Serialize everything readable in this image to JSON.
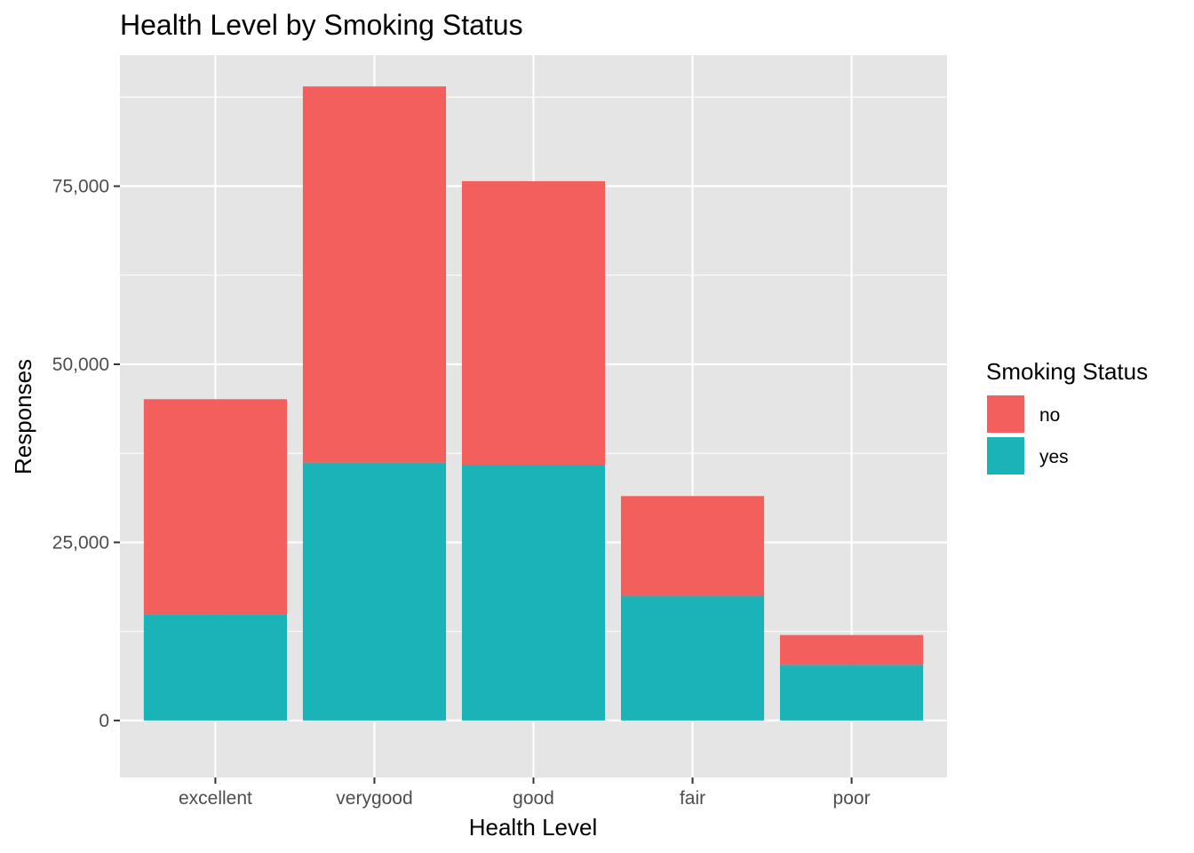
{
  "chart_data": {
    "type": "bar",
    "stacked": true,
    "title": "Health Level by Smoking Status",
    "xlabel": "Health Level",
    "ylabel": "Responses",
    "categories": [
      "excellent",
      "verygood",
      "good",
      "fair",
      "poor"
    ],
    "series": [
      {
        "name": "no",
        "values": [
          30200,
          52800,
          39800,
          14000,
          4200
        ],
        "color": "#F25F5C"
      },
      {
        "name": "yes",
        "values": [
          14900,
          36200,
          35900,
          17500,
          7800
        ],
        "color": "#1AB3B7"
      }
    ],
    "ylim": [
      -8000,
      93400
    ],
    "yticks": [
      0,
      25000,
      50000,
      75000
    ],
    "ytick_labels": [
      "0",
      "25,000",
      "50,000",
      "75,000"
    ],
    "grid": true,
    "legend": {
      "title": "Smoking Status",
      "position": "right"
    },
    "colors": {
      "panel_background": "#E5E5E5",
      "grid": "#FFFFFF"
    }
  }
}
